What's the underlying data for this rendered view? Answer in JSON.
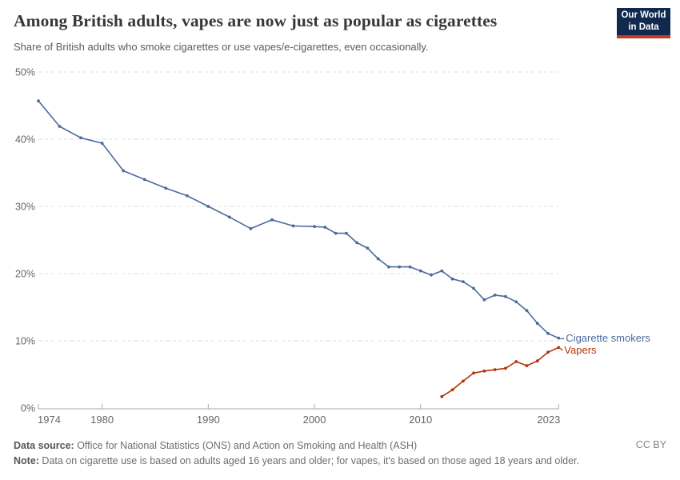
{
  "header": {
    "title": "Among British adults, vapes are now just as popular as cigarettes",
    "subtitle": "Share of British adults who smoke cigarettes or use vapes/e-cigarettes, even occasionally.",
    "logo": {
      "line1": "Our World",
      "line2": "in Data",
      "bg_color": "#12294F",
      "accent_color": "#C3392D"
    }
  },
  "footer": {
    "source_label": "Data source:",
    "source_text": " Office for National Statistics (ONS) and Action on Smoking and Health (ASH)",
    "note_label": "Note:",
    "note_text": " Data on cigarette use is based on adults aged 16 years and older; for vapes, it's based on those aged 18 years and older.",
    "license": "CC BY"
  },
  "chart_data": {
    "type": "line",
    "title": "Among British adults, vapes are now just as popular as cigarettes",
    "subtitle": "Share of British adults who smoke cigarettes or use vapes/e-cigarettes, even occasionally.",
    "xlabel": "",
    "ylabel": "",
    "xlim": [
      1974,
      2023
    ],
    "ylim": [
      0,
      50
    ],
    "grid": "horizontal-dashed",
    "legend": "end-of-line-labels",
    "x_ticks": [
      {
        "value": 1974,
        "label": "1974"
      },
      {
        "value": 1980,
        "label": "1980"
      },
      {
        "value": 1990,
        "label": "1990"
      },
      {
        "value": 2000,
        "label": "2000"
      },
      {
        "value": 2010,
        "label": "2010"
      },
      {
        "value": 2023,
        "label": "2023"
      }
    ],
    "y_ticks": [
      {
        "value": 0,
        "label": "0%"
      },
      {
        "value": 10,
        "label": "10%"
      },
      {
        "value": 20,
        "label": "20%"
      },
      {
        "value": 30,
        "label": "30%"
      },
      {
        "value": 40,
        "label": "40%"
      },
      {
        "value": 50,
        "label": "50%"
      }
    ],
    "series": [
      {
        "id": "cigarette-smokers",
        "name": "Cigarette smokers",
        "color": "#4C6A9C",
        "label_dx": 9,
        "label_dy": 4.5,
        "points": [
          [
            1974,
            45.7
          ],
          [
            1976,
            41.9
          ],
          [
            1978,
            40.2
          ],
          [
            1980,
            39.4
          ],
          [
            1982,
            35.3
          ],
          [
            1984,
            34.0
          ],
          [
            1986,
            32.7
          ],
          [
            1988,
            31.6
          ],
          [
            1990,
            30.0
          ],
          [
            1992,
            28.4
          ],
          [
            1994,
            26.7
          ],
          [
            1996,
            28.0
          ],
          [
            1998,
            27.1
          ],
          [
            2000,
            27.0
          ],
          [
            2001,
            26.9
          ],
          [
            2002,
            26.0
          ],
          [
            2003,
            26.0
          ],
          [
            2004,
            24.6
          ],
          [
            2005,
            23.8
          ],
          [
            2006,
            22.2
          ],
          [
            2007,
            21.0
          ],
          [
            2008,
            21.0
          ],
          [
            2009,
            21.0
          ],
          [
            2010,
            20.4
          ],
          [
            2011,
            19.8
          ],
          [
            2012,
            20.4
          ],
          [
            2013,
            19.2
          ],
          [
            2014,
            18.8
          ],
          [
            2015,
            17.8
          ],
          [
            2016,
            16.1
          ],
          [
            2017,
            16.8
          ],
          [
            2018,
            16.6
          ],
          [
            2019,
            15.8
          ],
          [
            2020,
            14.5
          ],
          [
            2021,
            12.6
          ],
          [
            2022,
            11.1
          ],
          [
            2023,
            10.4
          ]
        ]
      },
      {
        "id": "vapers",
        "name": "Vapers",
        "color": "#B13507",
        "label_dx": 7,
        "label_dy": 7.5,
        "points": [
          [
            2012,
            1.7
          ],
          [
            2013,
            2.7
          ],
          [
            2014,
            4.0
          ],
          [
            2015,
            5.2
          ],
          [
            2016,
            5.5
          ],
          [
            2017,
            5.7
          ],
          [
            2018,
            5.9
          ],
          [
            2019,
            6.9
          ],
          [
            2020,
            6.3
          ],
          [
            2021,
            7.0
          ],
          [
            2022,
            8.3
          ],
          [
            2023,
            9.0
          ]
        ]
      }
    ]
  }
}
